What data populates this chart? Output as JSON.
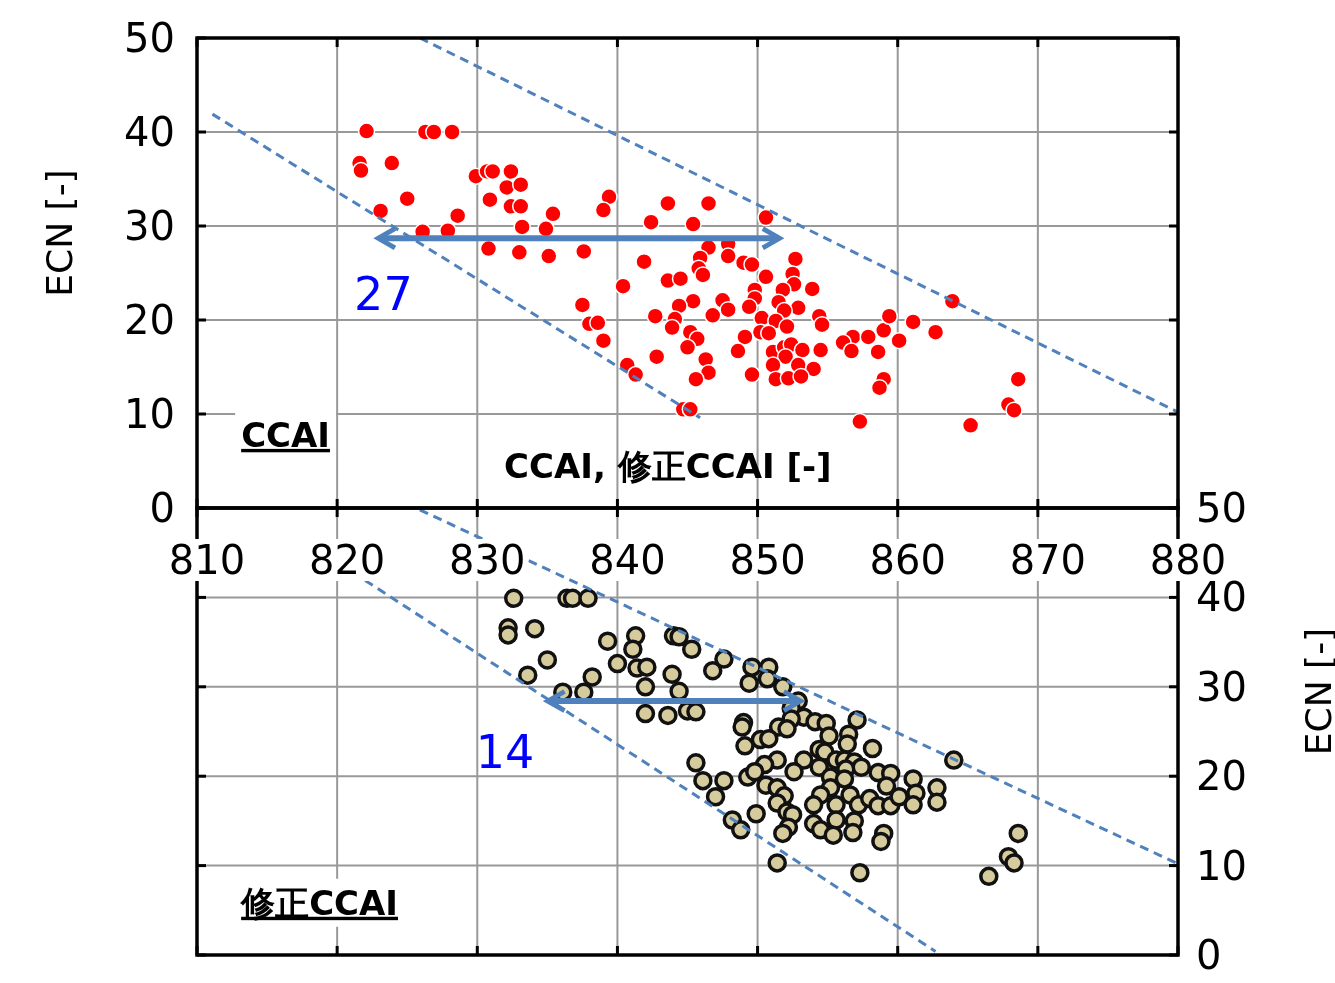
{
  "chart_data": [
    {
      "type": "scatter",
      "xlabel": "CCAI, 修正CCAI [-]",
      "ylabel": "ECN [-]",
      "xlim": [
        810,
        880
      ],
      "ylim": [
        0,
        50
      ],
      "xticks": [
        810,
        820,
        830,
        840,
        850,
        860,
        870,
        880
      ],
      "yticks": [
        0,
        10,
        20,
        30,
        40,
        50
      ],
      "grid": true,
      "marker": "circle",
      "annotations": [
        "CCAI",
        "27"
      ],
      "series": [
        {
          "color": "#ff0000",
          "x": [
            822.1,
            826.3,
            826.9,
            828.2,
            821.6,
            821.7,
            823.9,
            825,
            823.1,
            826.1,
            827.9,
            828.6,
            829.9,
            830.7,
            831.1,
            832.4,
            832.1,
            833.1,
            830.9,
            832.4,
            833.1,
            833.2,
            834.9,
            835.4,
            830.8,
            833,
            835.1,
            837.6,
            839.4,
            839,
            840.4,
            837.5,
            838,
            838.6,
            839,
            840.7,
            841.3,
            843.6,
            846.5,
            842.4,
            845.4,
            850.6,
            846.5,
            847.9,
            845.9,
            847.9,
            849,
            849.6,
            841.9,
            845.8,
            846.1,
            852.7,
            852.5,
            850.6,
            843.6,
            844.5,
            852.6,
            853.9,
            851.8,
            849.8,
            849.8,
            851.5,
            852.9,
            851.9,
            849.4,
            847.5,
            847.9,
            845.4,
            844.4,
            846.8,
            842.7,
            844.1,
            843.9,
            845.2,
            845.7,
            845,
            850.3,
            851.3,
            852.1,
            854.4,
            854.6,
            850.2,
            850.8,
            849.1,
            848.6,
            851.1,
            851.9,
            852.4,
            853.2,
            852,
            851.1,
            852.9,
            854.5,
            854,
            851.3,
            852.2,
            853.1,
            849.6,
            842.8,
            846.3,
            846.5,
            845.6,
            844.7,
            845.2,
            857.3,
            856.8,
            856.1,
            857.9,
            856.7,
            858.6,
            859,
            859.4,
            860.1,
            861.1,
            862.7,
            863.9,
            859,
            858.7,
            868.6,
            867.9,
            868.3,
            865.2
          ],
          "values": [
            40.1,
            40,
            40,
            40,
            36.7,
            35.9,
            36.7,
            32.9,
            31.6,
            29.4,
            29.5,
            31.1,
            35.3,
            35.8,
            35.8,
            35.8,
            34.1,
            34.4,
            32.8,
            32.1,
            32.1,
            29.9,
            29.7,
            31.3,
            27.6,
            27.2,
            26.8,
            27.3,
            33.1,
            31.7,
            23.6,
            21.6,
            19.6,
            19.7,
            17.8,
            15.2,
            14.2,
            32.4,
            32.4,
            30.4,
            30.2,
            30.9,
            27.7,
            28.1,
            26.6,
            26.8,
            26.1,
            25.9,
            26.2,
            25.5,
            24.8,
            26.5,
            24.9,
            24.6,
            24.2,
            24.4,
            23.8,
            23.3,
            23.2,
            23.2,
            22.3,
            21.9,
            21.3,
            21,
            21.4,
            22.1,
            21.1,
            22,
            21.5,
            20.5,
            20.4,
            20.1,
            19.2,
            18.7,
            18,
            17.1,
            20.2,
            19.9,
            19.3,
            20.4,
            19.5,
            18.7,
            18.6,
            18.2,
            16.7,
            16.6,
            17.1,
            17.4,
            16.8,
            16.1,
            15.2,
            15.2,
            16.8,
            14.8,
            13.7,
            13.8,
            14,
            14.2,
            16.1,
            15.8,
            14.4,
            13.7,
            10.5,
            10.5,
            9.2,
            18.2,
            17.6,
            18.2,
            16.7,
            16.6,
            18.9,
            20.4,
            17.8,
            19.8,
            18.7,
            22,
            13.7,
            12.8,
            13.7,
            11,
            10.4,
            8.8
          ]
        },
        {
          "type": "line",
          "line_style": "dashed",
          "marker": "none",
          "color": "#4f81bd",
          "x": [
            825.9,
            880
          ],
          "values": [
            50,
            10.2
          ]
        },
        {
          "type": "line",
          "line_style": "dashed",
          "marker": "none",
          "color": "#4f81bd",
          "x": [
            811.1,
            845.9
          ],
          "values": [
            41.9,
            9.6
          ]
        },
        {
          "type": "line",
          "line_style": "solid",
          "marker": "none",
          "color": "#4f81bd",
          "x": [
            823.1,
            851.4
          ],
          "values": [
            28.7,
            28.7
          ]
        }
      ]
    },
    {
      "type": "scatter",
      "y2label": "ECN [-]",
      "xlim": [
        810,
        880
      ],
      "y2lim": [
        0,
        50
      ],
      "xticks": [
        810,
        820,
        830,
        840,
        850,
        860,
        870,
        880
      ],
      "y2ticks": [
        0,
        10,
        20,
        30,
        40,
        50
      ],
      "grid": true,
      "marker": "circle",
      "tick_labels": "y",
      "annotations": [
        "修正CCAI",
        "14"
      ],
      "series": [
        {
          "axis": "y2",
          "color": "#d6cb9c",
          "x": [
            832.6,
            836.4,
            836.8,
            837.9,
            832.2,
            832.2,
            834.1,
            839.3,
            841.3,
            841.1,
            844,
            844.4,
            845.3,
            835,
            833.6,
            840,
            838.2,
            841.4,
            842.1,
            843.9,
            846.8,
            847.6,
            842,
            844.4,
            836.1,
            837.6,
            842,
            843.6,
            845,
            845.6,
            849.6,
            850.8,
            849.4,
            850.7,
            851.8,
            852.9,
            852.4,
            853.3,
            852.4,
            854.1,
            854.9,
            851.5,
            852.1,
            849,
            848.9,
            855.1,
            857.1,
            856.5,
            856.4,
            858.2,
            850.2,
            850.8,
            849.1,
            854.4,
            854.8,
            851.4,
            853.3,
            850.5,
            852.6,
            854.4,
            855.6,
            856.2,
            856.9,
            856.3,
            857.4,
            845.6,
            849.3,
            849.8,
            846.1,
            847.6,
            847,
            850.6,
            851.4,
            851.9,
            851.4,
            855.2,
            855.2,
            856.2,
            856.6,
            854.5,
            854,
            855.6,
            857.2,
            858,
            858.6,
            859.5,
            859.2,
            858.6,
            859.5,
            860.1,
            861.1,
            861.3,
            861.1,
            862.8,
            862.8,
            864,
            852.1,
            852.5,
            854,
            855.6,
            856.9,
            854.5,
            855.4,
            856.8,
            852.2,
            851.8,
            849.9,
            848.2,
            848.8,
            859,
            858.8,
            851.4,
            857.3,
            866.5,
            868.6,
            867.9,
            868.3
          ],
          "values": [
            39.9,
            39.9,
            39.9,
            39.9,
            36.6,
            35.8,
            36.5,
            35.1,
            35.7,
            34.2,
            35.7,
            35.6,
            34.2,
            33,
            31.3,
            32.6,
            31.1,
            32.1,
            32.2,
            31.4,
            31.8,
            33.1,
            30,
            29.5,
            29.4,
            29.4,
            27,
            26.8,
            27.3,
            27.2,
            32.2,
            32.2,
            30.4,
            30.9,
            30,
            28.4,
            27.6,
            26.6,
            26.4,
            26.1,
            25.9,
            25.5,
            25.3,
            26,
            25.5,
            24.5,
            26.3,
            24.7,
            23.6,
            23.1,
            24.1,
            24.2,
            23.4,
            23,
            22.7,
            21.8,
            21.8,
            21.3,
            20.5,
            21,
            21.8,
            21.8,
            21.6,
            20.8,
            21,
            21.5,
            19.9,
            20.5,
            19.5,
            19.5,
            17.7,
            19,
            18.7,
            17.8,
            17,
            19.9,
            18.7,
            19.7,
            17.9,
            17.9,
            16.8,
            16.8,
            16.8,
            17.5,
            20.4,
            20.3,
            18.9,
            16.7,
            16.7,
            17.7,
            19.7,
            18.1,
            16.8,
            18.7,
            17.1,
            21.8,
            16,
            15.7,
            14.7,
            15.1,
            15,
            14,
            13.4,
            13.7,
            14.3,
            13.6,
            15.8,
            15.1,
            14,
            13.6,
            12.7,
            10.3,
            9.2,
            8.8,
            13.6,
            11,
            10.3
          ]
        },
        {
          "axis": "y2",
          "type": "line",
          "line_style": "dashed",
          "marker": "none",
          "color": "#4f81bd",
          "x": [
            825.9,
            880
          ],
          "values": [
            49.8,
            10.2
          ]
        },
        {
          "axis": "y2",
          "type": "line",
          "line_style": "dashed",
          "marker": "none",
          "color": "#4f81bd",
          "x": [
            822,
            862.7
          ],
          "values": [
            41.9,
            0.4
          ]
        },
        {
          "axis": "y2",
          "type": "line",
          "line_style": "solid",
          "marker": "none",
          "color": "#4f81bd",
          "x": [
            835.2,
            852.9
          ],
          "values": [
            28.4,
            28.4
          ]
        }
      ]
    }
  ]
}
